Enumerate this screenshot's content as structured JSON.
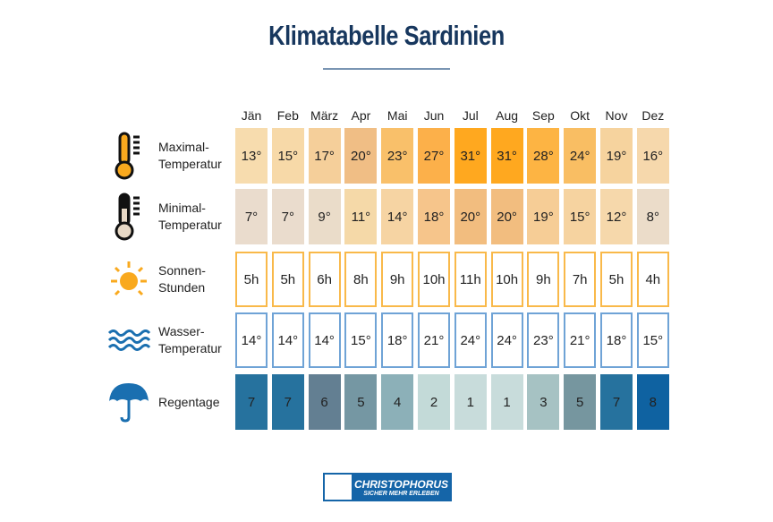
{
  "title": "Klimatabelle Sardinien",
  "months": [
    "Jän",
    "Feb",
    "März",
    "Apr",
    "Mai",
    "Jun",
    "Jul",
    "Aug",
    "Sep",
    "Okt",
    "Nov",
    "Dez"
  ],
  "rows": [
    {
      "label1": "Maximal-",
      "label2": "Temperatur",
      "icon": "thermometer-high-icon",
      "style": "fill",
      "values": [
        "13°",
        "15°",
        "17°",
        "20°",
        "23°",
        "27°",
        "31°",
        "31°",
        "28°",
        "24°",
        "19°",
        "16°"
      ],
      "colors": [
        "#f7dcae",
        "#f7d9a8",
        "#f5cf9a",
        "#f0be85",
        "#f9c06a",
        "#fcb04a",
        "#ffa81f",
        "#ffa81f",
        "#fdb443",
        "#f9be63",
        "#f6d39e",
        "#f6d8ac"
      ]
    },
    {
      "label1": "Minimal-",
      "label2": "Temperatur",
      "icon": "thermometer-low-icon",
      "style": "fill",
      "values": [
        "7°",
        "7°",
        "9°",
        "11°",
        "14°",
        "18°",
        "20°",
        "20°",
        "19°",
        "15°",
        "12°",
        "8°"
      ],
      "colors": [
        "#eadccd",
        "#eadccd",
        "#eadcc9",
        "#f5d9a8",
        "#f6d4a3",
        "#f6c58b",
        "#f2bd7f",
        "#f2bd7f",
        "#f6cd96",
        "#f6d3a0",
        "#f6d8ab",
        "#ebdcc9"
      ]
    },
    {
      "label1": "Sonnen-",
      "label2": "Stunden",
      "icon": "sun-icon",
      "style": "outline",
      "border": "#f9b94a",
      "values": [
        "5h",
        "5h",
        "6h",
        "8h",
        "9h",
        "10h",
        "11h",
        "10h",
        "9h",
        "7h",
        "5h",
        "4h"
      ]
    },
    {
      "label1": "Wasser-",
      "label2": "Temperatur",
      "icon": "waves-icon",
      "style": "outline",
      "border": "#6fa3d6",
      "values": [
        "14°",
        "14°",
        "14°",
        "15°",
        "18°",
        "21°",
        "24°",
        "24°",
        "23°",
        "21°",
        "18°",
        "15°"
      ]
    },
    {
      "label1": "Regentage",
      "label2": "",
      "icon": "umbrella-icon",
      "style": "fill",
      "values": [
        "7",
        "7",
        "6",
        "5",
        "4",
        "2",
        "1",
        "1",
        "3",
        "5",
        "7",
        "8"
      ],
      "colors": [
        "#26729e",
        "#26729e",
        "#637f92",
        "#7597a3",
        "#8cb0b8",
        "#c3dad8",
        "#c8dcdb",
        "#c8dcdb",
        "#a6c2c3",
        "#76969f",
        "#26729e",
        "#0f62a1"
      ]
    }
  ],
  "logo": {
    "name": "CHRISTOPHORUS",
    "slogan": "SICHER MEHR ERLEBEN",
    "color": "#1565a8"
  }
}
